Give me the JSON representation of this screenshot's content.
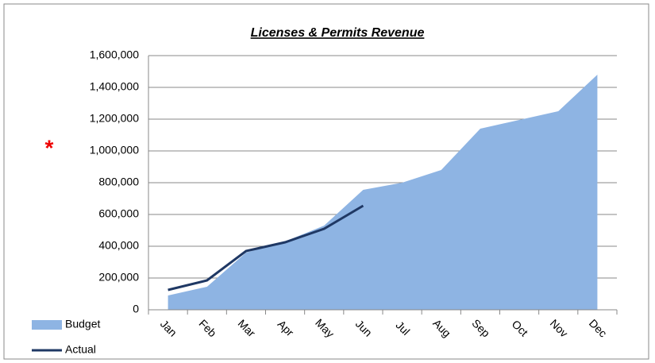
{
  "chart_data": {
    "type": "area",
    "title": "Licenses & Permits Revenue",
    "annotation": "*",
    "categories": [
      "Jan",
      "Feb",
      "Mar",
      "Apr",
      "May",
      "Jun",
      "Jul",
      "Aug",
      "Sep",
      "Oct",
      "Nov",
      "Dec"
    ],
    "series": [
      {
        "name": "Budget",
        "type": "area",
        "color": "#8eb4e3",
        "values": [
          90000,
          145000,
          360000,
          430000,
          530000,
          755000,
          800000,
          880000,
          1140000,
          1195000,
          1250000,
          1480000
        ]
      },
      {
        "name": "Actual",
        "type": "line",
        "color": "#1f3864",
        "values": [
          125000,
          185000,
          370000,
          425000,
          510000,
          655000,
          null,
          null,
          null,
          null,
          null,
          null
        ]
      }
    ],
    "ylim": [
      0,
      1600000
    ],
    "yticks": [
      0,
      {
        "value": 200000,
        "label": "200,000"
      },
      {
        "value": 400000,
        "label": "400,000"
      },
      {
        "value": 600000,
        "label": "600,000"
      },
      {
        "value": 800000,
        "label": "800,000"
      },
      {
        "value": 1000000,
        "label": "1,000,000"
      },
      {
        "value": 1200000,
        "label": "1,200,000"
      },
      {
        "value": 1400000,
        "label": "1,400,000"
      },
      {
        "value": 1600000,
        "label": "1,600,000"
      }
    ],
    "grid": true,
    "legend": "bottom-left"
  }
}
